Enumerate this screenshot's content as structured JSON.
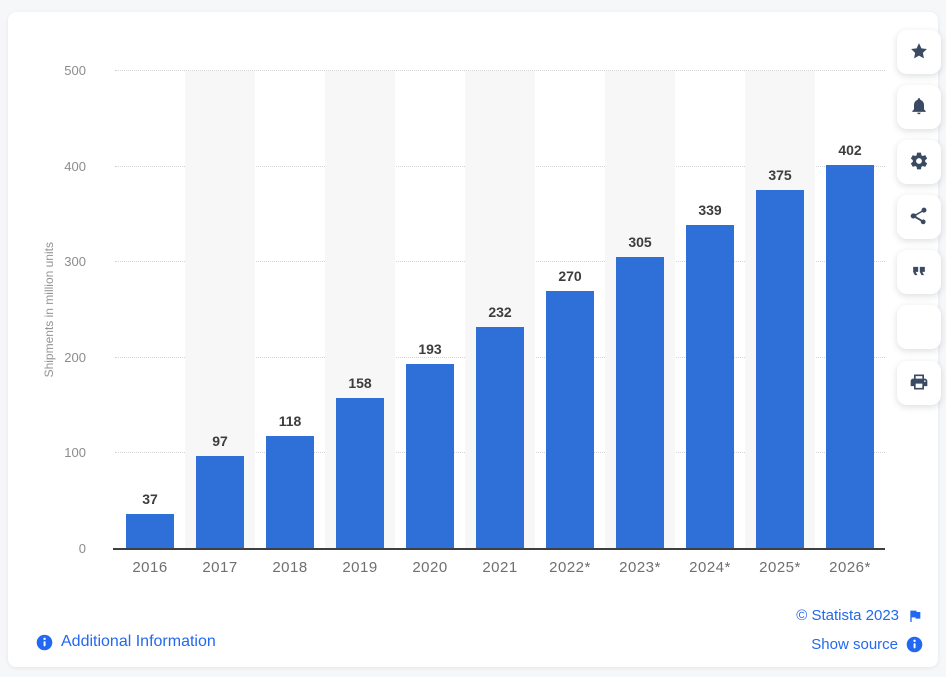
{
  "chart_data": {
    "type": "bar",
    "categories": [
      "2016",
      "2017",
      "2018",
      "2019",
      "2020",
      "2021",
      "2022*",
      "2023*",
      "2024*",
      "2025*",
      "2026*"
    ],
    "values": [
      37,
      97,
      118,
      158,
      193,
      232,
      270,
      305,
      339,
      375,
      402
    ],
    "title": "",
    "xlabel": "",
    "ylabel": "Shipments in million units",
    "ylim": [
      0,
      500
    ],
    "yticks": [
      0,
      100,
      200,
      300,
      400,
      500
    ],
    "grid": true,
    "legend": false,
    "band_columns": "alternate odd columns shaded",
    "value_labels": true
  },
  "toolbar": {
    "icons": [
      "star-icon",
      "bell-icon",
      "gear-icon",
      "share-icon",
      "quote-icon",
      "blank",
      "printer-icon"
    ]
  },
  "footer": {
    "additional_info": "Additional Information",
    "copyright": "© Statista 2023",
    "show_source": "Show source"
  },
  "colors": {
    "bar": "#2e6fd8",
    "band": "#f7f7f8",
    "link": "#2368f0",
    "icon": "#3b4a63",
    "value_label": "#3d3d3d",
    "axis_text": "#8c8c8c"
  }
}
